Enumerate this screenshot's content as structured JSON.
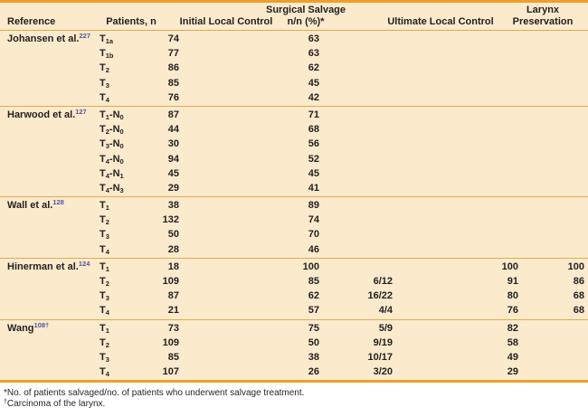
{
  "colors": {
    "accent_orange": "#EE9F2D",
    "separator_gold": "#E3A94F",
    "table_background": "#FBEACC",
    "text": "#231F20",
    "citation_superscript": "#5155A0"
  },
  "table": {
    "headers": {
      "reference": "Reference",
      "patients": "Patients, n",
      "initial_local_control": "Initial Local Control",
      "surgical_salvage_line1": "Surgical Salvage",
      "surgical_salvage_line2": "n/n (%)*",
      "ultimate_local_control": "Ultimate Local Control",
      "larynx_line1": "Larynx",
      "larynx_line2": "Preservation"
    },
    "groups": [
      {
        "reference": {
          "name": "Johansen et al.",
          "sup": "227"
        },
        "rows": [
          {
            "stage": {
              "t": "1a"
            },
            "initial": "74",
            "salvage": "63",
            "nn": "",
            "ultimate": "",
            "larynx": ""
          },
          {
            "stage": {
              "t": "1b"
            },
            "initial": "77",
            "salvage": "63",
            "nn": "",
            "ultimate": "",
            "larynx": ""
          },
          {
            "stage": {
              "t": "2"
            },
            "initial": "86",
            "salvage": "62",
            "nn": "",
            "ultimate": "",
            "larynx": ""
          },
          {
            "stage": {
              "t": "3"
            },
            "initial": "85",
            "salvage": "45",
            "nn": "",
            "ultimate": "",
            "larynx": ""
          },
          {
            "stage": {
              "t": "4"
            },
            "initial": "76",
            "salvage": "42",
            "nn": "",
            "ultimate": "",
            "larynx": ""
          }
        ]
      },
      {
        "reference": {
          "name": "Harwood et al.",
          "sup": "127"
        },
        "rows": [
          {
            "stage": {
              "t": "1",
              "n": "0"
            },
            "initial": "87",
            "salvage": "71",
            "nn": "",
            "ultimate": "",
            "larynx": ""
          },
          {
            "stage": {
              "t": "2",
              "n": "0"
            },
            "initial": "44",
            "salvage": "68",
            "nn": "",
            "ultimate": "",
            "larynx": ""
          },
          {
            "stage": {
              "t": "3",
              "n": "0"
            },
            "initial": "30",
            "salvage": "56",
            "nn": "",
            "ultimate": "",
            "larynx": ""
          },
          {
            "stage": {
              "t": "4",
              "n": "0"
            },
            "initial": "94",
            "salvage": "52",
            "nn": "",
            "ultimate": "",
            "larynx": ""
          },
          {
            "stage": {
              "t": "4",
              "n": "1"
            },
            "initial": "45",
            "salvage": "45",
            "nn": "",
            "ultimate": "",
            "larynx": ""
          },
          {
            "stage": {
              "t": "4",
              "n": "3"
            },
            "initial": "29",
            "salvage": "41",
            "nn": "",
            "ultimate": "",
            "larynx": ""
          }
        ]
      },
      {
        "reference": {
          "name": "Wall et al.",
          "sup": "128"
        },
        "rows": [
          {
            "stage": {
              "t": "1"
            },
            "initial": "38",
            "salvage": "89",
            "nn": "",
            "ultimate": "",
            "larynx": ""
          },
          {
            "stage": {
              "t": "2"
            },
            "initial": "132",
            "salvage": "74",
            "nn": "",
            "ultimate": "",
            "larynx": ""
          },
          {
            "stage": {
              "t": "3"
            },
            "initial": "50",
            "salvage": "70",
            "nn": "",
            "ultimate": "",
            "larynx": ""
          },
          {
            "stage": {
              "t": "4"
            },
            "initial": "28",
            "salvage": "46",
            "nn": "",
            "ultimate": "",
            "larynx": ""
          }
        ]
      },
      {
        "reference": {
          "name": "Hinerman et al.",
          "sup": "124"
        },
        "rows": [
          {
            "stage": {
              "t": "1"
            },
            "initial": "18",
            "salvage": "100",
            "nn": "",
            "ultimate": "100",
            "larynx": "100"
          },
          {
            "stage": {
              "t": "2"
            },
            "initial": "109",
            "salvage": "85",
            "nn": "6/12",
            "ultimate": "91",
            "larynx": "86"
          },
          {
            "stage": {
              "t": "3"
            },
            "initial": "87",
            "salvage": "62",
            "nn": "16/22",
            "ultimate": "80",
            "larynx": "68"
          },
          {
            "stage": {
              "t": "4"
            },
            "initial": "21",
            "salvage": "57",
            "nn": "4/4",
            "ultimate": "76",
            "larynx": "68"
          }
        ]
      },
      {
        "reference": {
          "name": "Wang",
          "sup": "108†"
        },
        "rows": [
          {
            "stage": {
              "t": "1"
            },
            "initial": "73",
            "salvage": "75",
            "nn": "5/9",
            "ultimate": "82",
            "larynx": ""
          },
          {
            "stage": {
              "t": "2"
            },
            "initial": "109",
            "salvage": "50",
            "nn": "9/19",
            "ultimate": "58",
            "larynx": ""
          },
          {
            "stage": {
              "t": "3"
            },
            "initial": "85",
            "salvage": "38",
            "nn": "10/17",
            "ultimate": "49",
            "larynx": ""
          },
          {
            "stage": {
              "t": "4"
            },
            "initial": "107",
            "salvage": "26",
            "nn": "3/20",
            "ultimate": "29",
            "larynx": ""
          }
        ]
      }
    ],
    "footnotes": [
      {
        "marker": "*",
        "superscript_marker": false,
        "text": "No. of patients salvaged/no. of patients who underwent salvage treatment."
      },
      {
        "marker": "†",
        "superscript_marker": true,
        "text": "Carcinoma of the larynx."
      }
    ]
  }
}
